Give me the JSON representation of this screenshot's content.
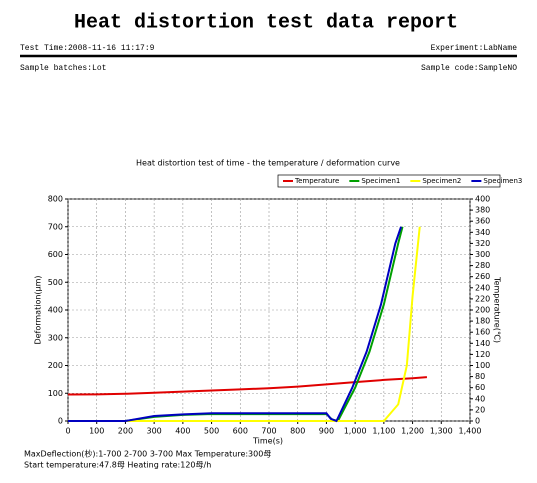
{
  "header": {
    "title": "Heat distortion test data report",
    "test_time": "Test Time:2008-11-16 11:17:9",
    "experiment": "Experiment:LabName",
    "sample_batches": "Sample batches:Lot",
    "sample_code": "Sample code:SampleNO"
  },
  "chart_data": {
    "type": "line",
    "title": "Heat distortion test of time - the temperature / deformation curve",
    "x_label": "Time(s)",
    "y_label": "Deformation(μm)",
    "y2_label": "Temperature(℃)",
    "xlim": [
      0,
      1400
    ],
    "xticks": [
      0,
      100,
      200,
      300,
      400,
      500,
      600,
      700,
      800,
      900,
      {
        "value": 1000,
        "label": "1,000"
      },
      {
        "value": 1100,
        "label": "1,100"
      },
      {
        "value": 1200,
        "label": "1,200"
      },
      {
        "value": 1300,
        "label": "1,300"
      },
      {
        "value": 1400,
        "label": "1,400"
      }
    ],
    "ylim": [
      0,
      800
    ],
    "yticks": [
      0,
      100,
      200,
      300,
      400,
      500,
      600,
      700,
      800
    ],
    "y2lim": [
      0,
      400
    ],
    "y2ticks": [
      0,
      20,
      40,
      60,
      80,
      100,
      120,
      140,
      160,
      180,
      200,
      220,
      240,
      260,
      280,
      300,
      320,
      340,
      360,
      380,
      400
    ],
    "grid": true,
    "series": [
      {
        "name": "Temperature",
        "color": "#e00000",
        "axis": "y2",
        "x": [
          0,
          100,
          200,
          300,
          400,
          500,
          600,
          700,
          800,
          900,
          1000,
          1100,
          1200,
          1250
        ],
        "values": [
          47.8,
          48,
          49,
          51,
          53,
          55,
          57,
          59,
          62,
          66,
          70,
          74,
          77,
          79
        ]
      },
      {
        "name": "Specimen1",
        "color": "#00a000",
        "x": [
          0,
          200,
          300,
          400,
          500,
          900,
          920,
          940,
          1000,
          1050,
          1100,
          1150,
          1165
        ],
        "values": [
          0,
          0,
          15,
          22,
          25,
          25,
          5,
          0,
          120,
          250,
          420,
          640,
          700
        ]
      },
      {
        "name": "Specimen2",
        "color": "#ffff00",
        "x": [
          0,
          1100,
          1150,
          1180,
          1200,
          1225
        ],
        "values": [
          0,
          0,
          60,
          200,
          450,
          700
        ]
      },
      {
        "name": "Specimen3",
        "color": "#0000c0",
        "x": [
          0,
          200,
          300,
          400,
          500,
          900,
          915,
          935,
          990,
          1040,
          1090,
          1140,
          1160
        ],
        "values": [
          0,
          0,
          18,
          24,
          28,
          28,
          8,
          0,
          120,
          250,
          420,
          640,
          700
        ]
      }
    ]
  },
  "footer": {
    "line1": "MaxDeflection(杪):1-700 2-700 3-700   Max Temperature:300母",
    "line2": "Start temperature:47.8母   Heating rate:120母/h"
  }
}
